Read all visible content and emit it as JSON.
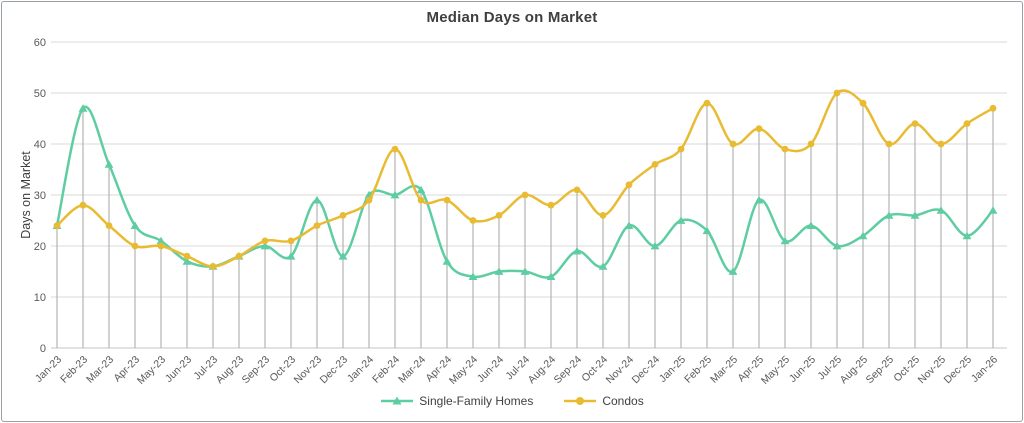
{
  "chart_data": {
    "type": "line",
    "title": "Median Days on Market",
    "xlabel": "",
    "ylabel": "Days on Market",
    "ylim": [
      0,
      60
    ],
    "yticks": [
      0,
      10,
      20,
      30,
      40,
      50,
      60
    ],
    "grid": "horizontal",
    "droplines": true,
    "smooth_lines": true,
    "legend_position": "bottom",
    "categories": [
      "Jan-23",
      "Feb-23",
      "Mar-23",
      "Apr-23",
      "May-23",
      "Jun-23",
      "Jul-23",
      "Aug-23",
      "Sep-23",
      "Oct-23",
      "Nov-23",
      "Dec-23",
      "Jan-24",
      "Feb-24",
      "Mar-24",
      "Apr-24",
      "May-24",
      "Jun-24",
      "Jul-24",
      "Aug-24",
      "Sep-24",
      "Oct-24",
      "Nov-24",
      "Dec-24",
      "Jan-25",
      "Feb-25",
      "Mar-25",
      "Apr-25",
      "May-25",
      "Jun-25",
      "Jul-25",
      "Aug-25",
      "Sep-25",
      "Oct-25",
      "Nov-25",
      "Dec-25",
      "Jan-26"
    ],
    "series": [
      {
        "name": "Single-Family Homes",
        "marker": "triangle",
        "color": "#5fcda2",
        "values": [
          24,
          47,
          36,
          24,
          21,
          17,
          16,
          18,
          20,
          18,
          29,
          18,
          30,
          30,
          31,
          17,
          14,
          15,
          15,
          14,
          19,
          16,
          24,
          20,
          25,
          23,
          15,
          29,
          21,
          24,
          20,
          22,
          26,
          26,
          27,
          22,
          27
        ]
      },
      {
        "name": "Condos",
        "marker": "circle",
        "color": "#e9bb33",
        "values": [
          24,
          28,
          24,
          20,
          20,
          18,
          16,
          18,
          21,
          21,
          24,
          26,
          29,
          39,
          29,
          29,
          25,
          26,
          30,
          28,
          31,
          26,
          32,
          36,
          39,
          48,
          40,
          43,
          39,
          40,
          50,
          48,
          40,
          44,
          40,
          44,
          47
        ]
      }
    ],
    "colors": {
      "gridline": "#d9d9d9",
      "axis_line": "#c6c6c6",
      "dropline": "#a6a6a6",
      "tick_text": "#595959",
      "title_text": "#3f3f3f"
    }
  }
}
